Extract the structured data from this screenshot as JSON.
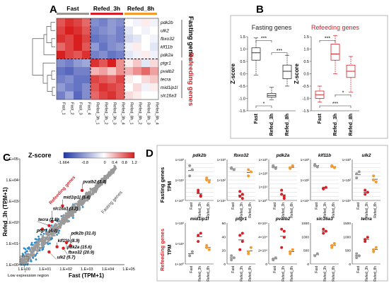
{
  "colors": {
    "fast": "#999999",
    "refed_3h": "#d61f26",
    "refed_8h": "#f39c2e",
    "scatter_blue": "#2b8ccd",
    "scatter_gray": "#9a9a9a",
    "heat_low": "#2036a8",
    "heat_high": "#d81e1e"
  },
  "panelA": {
    "label": "A",
    "groups": [
      {
        "name": "Fast",
        "color": "#999999"
      },
      {
        "name": "Refed_3h",
        "color": "#d61f26"
      },
      {
        "name": "Refed_8h",
        "color": "#f39c2e"
      }
    ],
    "columns": [
      "Fast_1",
      "Fast_2",
      "Fast_3",
      "Fast_4",
      "Refed_3h_1",
      "Refed_3h_2",
      "Refed_3h_3",
      "Refed_3h_4",
      "Refed_8h_1",
      "Refed_8h_2",
      "Refed_8h_3",
      "Refed_8h_4"
    ],
    "rows": [
      "pdk2b",
      "ulk2",
      "fbxo32",
      "klf11b",
      "pdk2a",
      "ptgr1",
      "pvalb2",
      "tecra",
      "mid1ip1l",
      "slc16a3"
    ],
    "fasting_label": "Fasting genes",
    "refeeding_label": "Refeeding genes",
    "values": [
      [
        0.9,
        1.1,
        1.0,
        0.8,
        -0.9,
        -1.0,
        -0.8,
        -0.9,
        0.0,
        -0.1,
        0.1,
        -0.1
      ],
      [
        1.0,
        1.2,
        1.1,
        0.9,
        -1.0,
        -0.9,
        -0.8,
        -1.0,
        -0.2,
        0.0,
        -0.1,
        0.0
      ],
      [
        1.1,
        1.0,
        1.2,
        1.0,
        -1.1,
        -1.0,
        -0.9,
        -1.0,
        -0.3,
        -0.2,
        0.0,
        -0.1
      ],
      [
        0.8,
        1.0,
        1.2,
        0.9,
        -0.8,
        -1.1,
        -0.9,
        -0.8,
        -0.1,
        0.1,
        0.0,
        -0.2
      ],
      [
        1.2,
        1.0,
        0.9,
        1.1,
        -1.0,
        -0.9,
        -1.1,
        -1.0,
        -0.2,
        -0.1,
        0.1,
        -0.1
      ],
      [
        -0.9,
        -1.0,
        -0.8,
        -0.7,
        1.1,
        0.9,
        1.2,
        0.6,
        0.1,
        0.3,
        -0.2,
        0.2
      ],
      [
        -1.1,
        -1.2,
        -1.0,
        -1.0,
        0.4,
        0.5,
        0.3,
        0.6,
        0.4,
        0.6,
        0.8,
        0.5
      ],
      [
        -1.0,
        -0.9,
        -1.1,
        -1.1,
        1.0,
        0.9,
        0.8,
        1.0,
        0.1,
        0.0,
        0.2,
        0.3
      ],
      [
        -0.8,
        -1.0,
        -1.1,
        -0.9,
        0.9,
        1.1,
        1.0,
        0.9,
        0.0,
        0.2,
        -0.1,
        0.1
      ],
      [
        -1.0,
        -0.7,
        -1.2,
        -0.9,
        0.8,
        1.0,
        1.1,
        0.9,
        0.2,
        0.1,
        0.0,
        0.0
      ]
    ],
    "legend_title": "Z-score",
    "legend_ticks": [
      "-1.664",
      "-0.8",
      "0",
      "0.4",
      "0.8",
      "1.2"
    ]
  },
  "panelB": {
    "label": "B",
    "ylabel": "Z-score",
    "ticks": [
      "1.5",
      "1.0",
      "0.5",
      "0.0",
      "-0.5",
      "-1.0",
      "-1.5"
    ],
    "groups": [
      "Fast",
      "Refed_3h",
      "Refed_8h"
    ],
    "charts": [
      {
        "title": "Fasting genes",
        "title_color": "#222222",
        "box_color": "#333333",
        "boxes": [
          {
            "min": -0.05,
            "q1": 0.55,
            "median": 0.85,
            "q3": 1.05,
            "max": 1.45
          },
          {
            "min": -1.05,
            "q1": -0.95,
            "median": -0.88,
            "q3": -0.8,
            "max": -0.55
          },
          {
            "min": -0.5,
            "q1": -0.2,
            "median": 0.1,
            "q3": 0.35,
            "max": 0.75
          }
        ],
        "sig": [
          {
            "a": 0,
            "b": 1,
            "label": "***",
            "y": 1.35
          },
          {
            "a": 1,
            "b": 2,
            "label": "***",
            "y": 0.85
          },
          {
            "a": 0,
            "b": 1,
            "label": "*",
            "y": -1.3
          }
        ]
      },
      {
        "title": "Refeeding genes",
        "title_color": "#d61f26",
        "box_color": "#d61f26",
        "boxes": [
          {
            "min": -1.15,
            "q1": -1.0,
            "median": -0.85,
            "q3": -0.7,
            "max": -0.5
          },
          {
            "min": 0.0,
            "q1": 0.55,
            "median": 0.8,
            "q3": 1.2,
            "max": 1.55
          },
          {
            "min": -0.75,
            "q1": -0.15,
            "median": 0.1,
            "q3": 0.35,
            "max": 0.7
          }
        ],
        "sig": [
          {
            "a": 0,
            "b": 1,
            "label": "***",
            "y": 1.35
          },
          {
            "a": 1,
            "b": 2,
            "label": "*",
            "y": -0.85
          },
          {
            "a": 0,
            "b": 2,
            "label": "***",
            "y": -1.3
          }
        ]
      }
    ]
  },
  "panelC": {
    "label": "C",
    "xlabel": "Fast (TPM+1)",
    "ylabel": "Refed_3h (TPM+1)",
    "ticks": [
      "1.E+00",
      "1.E+01",
      "1.E+02",
      "1.E+03",
      "1.E+04",
      "1.E+05"
    ],
    "refeeding_text": "Refeeding genes",
    "fasting_text": "Fasting genes",
    "low_expr_text": "Low expression region",
    "annotations": [
      {
        "text": "pvalb2 (3.4)",
        "x": 950,
        "y": 3200,
        "tx": 960,
        "ty": 6500
      },
      {
        "text": "mid1ip1l (5.4)",
        "x": 110,
        "y": 600,
        "tx": 110,
        "ty": 1200
      },
      {
        "text": "slc16a3 (3.2)",
        "x": 35,
        "y": 110,
        "tx": 35,
        "ty": 350
      },
      {
        "text": "tecra (2.8)",
        "x": 25,
        "y": 70,
        "tx": 7,
        "ty": 110
      },
      {
        "text": "ptgr1 (4.0)",
        "x": 12,
        "y": 48,
        "tx": 6,
        "ty": 33
      },
      {
        "text": "pdk2b (31.0)",
        "x": 260,
        "y": 8,
        "tx": 260,
        "ty": 24
      },
      {
        "text": "klf11b (8.9)",
        "x": 60,
        "y": 7,
        "tx": 60,
        "ty": 11
      },
      {
        "text": "pdk2a (15.6)",
        "x": 170,
        "y": 11,
        "tx": 170,
        "ty": 5.5
      },
      {
        "text": "fbxo32 (20.9)",
        "x": 120,
        "y": 6,
        "tx": 190,
        "ty": 3
      },
      {
        "text": "ulk2 (5.7)",
        "x": 25,
        "y": 4,
        "tx": 55,
        "ty": 1.8
      }
    ]
  },
  "panelD": {
    "label": "D",
    "group_labels": [
      "Fast",
      "Refed_3h",
      "Refed_8h"
    ],
    "ylabel": "TPM",
    "fasting_title": "Fasting genes",
    "refeeding_title": "Refeeding genes",
    "fasting": [
      {
        "gene": "pdk2b",
        "ticks": [
          "1×10²",
          "1×10¹",
          "1×10⁰"
        ],
        "pts": [
          [
            0.85,
            0.75,
            0.6
          ],
          [
            0.2,
            0.1,
            0.25,
            0.12
          ],
          [
            0.55,
            0.45,
            0.5
          ]
        ]
      },
      {
        "gene": "fbxo32",
        "ticks": [
          "1×10³",
          "1×10²",
          "1×10¹"
        ],
        "pts": [
          [
            0.8,
            0.75,
            0.78
          ],
          [
            0.1,
            0.15,
            0.22,
            0.05
          ],
          [
            0.6,
            0.7,
            0.75
          ]
        ]
      },
      {
        "gene": "pdk2a",
        "ticks": [
          "1×10³",
          "1×10²",
          "1×10¹",
          "1×10⁰"
        ],
        "pts": [
          [
            0.85,
            0.78,
            0.82
          ],
          [
            0.25,
            0.1,
            0.15,
            0.05
          ],
          [
            0.8,
            0.85,
            0.78
          ]
        ]
      },
      {
        "gene": "klf11b",
        "ticks": [
          "1×10³",
          "1×10²",
          "1×10¹"
        ],
        "pts": [
          [
            0.85,
            0.82,
            0.88
          ],
          [
            0.3,
            0.32,
            0.28
          ],
          [
            0.85,
            0.8,
            0.83
          ]
        ]
      },
      {
        "gene": "ulk2",
        "ticks": [
          "1×10³",
          "1×10²",
          "1×10¹"
        ],
        "pts": [
          [
            0.65,
            0.7,
            0.55
          ],
          [
            0.15,
            0.2,
            0.25
          ],
          [
            0.5,
            0.45,
            0.6
          ]
        ]
      }
    ],
    "refeeding": [
      {
        "gene": "mid1ip1l",
        "ticks": [
          "1×10²",
          "1×10¹",
          "1×10⁰"
        ],
        "pts": [
          [
            0.2,
            0.3
          ],
          [
            0.55,
            0.75,
            0.7
          ],
          [
            0.4,
            0.35,
            0.45
          ]
        ]
      },
      {
        "gene": "ptgr1",
        "ticks": [
          "60",
          "40",
          "20",
          "0"
        ],
        "pts": [
          [
            0.1,
            0.15,
            0.2
          ],
          [
            0.35,
            0.55,
            0.7,
            0.75
          ],
          [
            0.25,
            0.4,
            0.3
          ]
        ]
      },
      {
        "gene": "pvalb2",
        "ticks": [
          "6×10⁴",
          "4×10⁴",
          "2×10⁴",
          "0"
        ],
        "pts": [
          [
            0.1,
            0.15,
            0.12
          ],
          [
            0.4,
            0.65,
            0.85,
            0.8
          ],
          [
            0.25,
            0.35,
            0.3
          ]
        ]
      },
      {
        "gene": "slc16a3",
        "ticks": [
          "1500",
          "1000",
          "500",
          "0"
        ],
        "pts": [
          [
            0.2,
            0.25
          ],
          [
            0.75,
            0.8,
            0.85
          ],
          [
            0.45,
            0.5,
            0.4
          ]
        ]
      },
      {
        "gene": "tecra",
        "ticks": [
          "1500",
          "1000",
          "500",
          "0"
        ],
        "pts": [
          [
            0.15,
            0.2,
            0.25
          ],
          [
            0.55,
            0.65,
            0.6
          ],
          [
            0.35,
            0.4,
            0.3
          ]
        ]
      }
    ]
  }
}
